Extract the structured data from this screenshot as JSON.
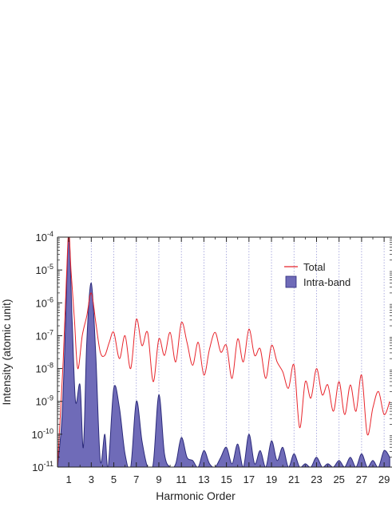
{
  "chart_data": {
    "type": "area",
    "xlabel": "Harmonic Order",
    "ylabel": "Intensity (atomic unit)",
    "x_ticks": [
      "1",
      "3",
      "5",
      "7",
      "9",
      "11",
      "13",
      "15",
      "17",
      "19",
      "21",
      "23",
      "25",
      "27",
      "29"
    ],
    "xlim": [
      0,
      29.7
    ],
    "y_scale": "log",
    "ylim_exponent": [
      -11,
      -4
    ],
    "y_tick_base": "10",
    "y_tick_exponents": [
      "-4",
      "-5",
      "-6",
      "-7",
      "-8",
      "-9",
      "-10",
      "-11"
    ],
    "grid": "dotted vertical lines at odd harmonic orders",
    "legend_position": "top-right",
    "series": [
      {
        "name": "Total",
        "style": "line",
        "color": "#e8242b",
        "x": [
          0,
          0.5,
          0.8,
          1,
          1.2,
          1.5,
          1.8,
          2.2,
          2.6,
          3,
          3.4,
          3.8,
          4.2,
          4.6,
          5,
          5.5,
          6,
          6.5,
          7,
          7.5,
          8,
          8.5,
          9,
          9.5,
          10,
          10.5,
          11,
          11.5,
          12,
          12.5,
          13,
          13.5,
          14,
          14.5,
          15,
          15.5,
          16,
          16.5,
          17,
          17.5,
          18,
          18.5,
          19,
          19.5,
          20,
          20.5,
          21,
          21.5,
          22,
          22.5,
          23,
          23.5,
          24,
          24.5,
          25,
          25.5,
          26,
          26.5,
          27,
          27.5,
          28,
          28.5,
          29,
          29.5
        ],
        "y_log10": [
          -11,
          -7.8,
          -5.2,
          -3.8,
          -5.0,
          -6.5,
          -8.0,
          -7.0,
          -6.4,
          -5.7,
          -6.6,
          -7.5,
          -7.6,
          -7.2,
          -6.9,
          -7.7,
          -7.0,
          -8.0,
          -6.5,
          -7.3,
          -6.9,
          -8.4,
          -7.1,
          -7.6,
          -6.9,
          -7.8,
          -6.6,
          -7.2,
          -7.9,
          -7.2,
          -8.2,
          -7.4,
          -6.9,
          -7.5,
          -7.3,
          -8.3,
          -7.1,
          -7.8,
          -6.8,
          -7.6,
          -7.4,
          -8.3,
          -7.3,
          -7.8,
          -8.1,
          -8.6,
          -7.9,
          -9.8,
          -8.4,
          -8.9,
          -8.0,
          -8.8,
          -8.5,
          -9.3,
          -8.4,
          -9.4,
          -8.5,
          -9.3,
          -8.2,
          -10.0,
          -9.2,
          -8.7,
          -9.4,
          -9.0
        ]
      },
      {
        "name": "Intra-band",
        "style": "filled-area",
        "color": "#6f6bb8",
        "edge_color": "#2b2a7a",
        "x": [
          0,
          0.4,
          0.7,
          1,
          1.3,
          1.6,
          2.0,
          2.3,
          2.6,
          3,
          3.4,
          3.8,
          4.2,
          4.5,
          5,
          5.5,
          6,
          6.5,
          7,
          7.5,
          8,
          8.5,
          9,
          9.5,
          10,
          10.5,
          11,
          11.5,
          12,
          12.5,
          13,
          13.5,
          14,
          14.5,
          15,
          15.5,
          16,
          16.5,
          17,
          17.5,
          18,
          18.5,
          19,
          19.5,
          20,
          20.5,
          21,
          21.5,
          22,
          22.5,
          23,
          23.5,
          24,
          24.5,
          25,
          25.5,
          26,
          26.5,
          27,
          27.5,
          28,
          28.5,
          29,
          29.5
        ],
        "y_log10": [
          -11,
          -9.5,
          -6.8,
          -3.9,
          -6.5,
          -9.0,
          -8.5,
          -10.4,
          -7.2,
          -5.4,
          -7.6,
          -10.8,
          -10.0,
          -11.0,
          -8.6,
          -9.2,
          -10.6,
          -11.0,
          -9.0,
          -10.2,
          -11.0,
          -10.9,
          -8.8,
          -10.6,
          -11.0,
          -10.9,
          -10.1,
          -10.7,
          -10.8,
          -11.0,
          -10.5,
          -10.9,
          -11.0,
          -10.7,
          -10.4,
          -10.9,
          -10.3,
          -11.0,
          -10.0,
          -10.9,
          -10.5,
          -11.0,
          -10.2,
          -10.8,
          -10.4,
          -11.0,
          -10.6,
          -11.0,
          -10.9,
          -11.0,
          -10.7,
          -11.0,
          -10.9,
          -11.0,
          -10.8,
          -11.0,
          -10.7,
          -11.0,
          -10.6,
          -11.0,
          -10.8,
          -11.0,
          -10.5,
          -10.7
        ]
      }
    ]
  }
}
